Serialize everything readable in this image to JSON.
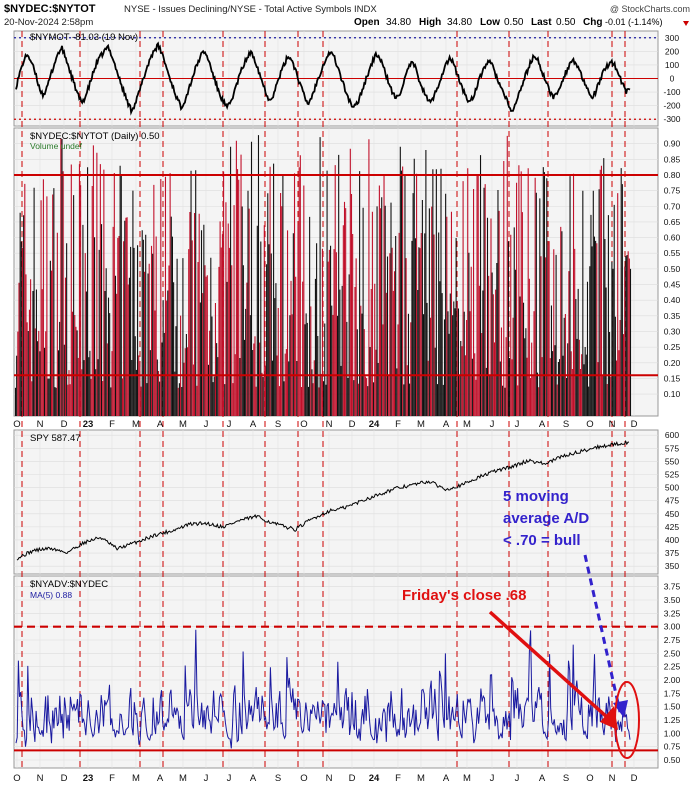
{
  "header": {
    "symbol": "$NYDEC:$NYTOT",
    "description": "NYSE - Issues Declining/NYSE - Total Active Symbols INDX",
    "watermark": "@ StockCharts.com",
    "date": "20-Nov-2024 2:58pm",
    "open_label": "Open",
    "open": "34.80",
    "high_label": "High",
    "high": "34.80",
    "low_label": "Low",
    "low": "0.50",
    "last_label": "Last",
    "last": "0.50",
    "chg_label": "Chg",
    "chg": "-0.01 (-1.14%)"
  },
  "colors": {
    "red": "#cc0000",
    "bar_red": "#c0102a",
    "blue": "#1a1aa0",
    "annotation_blue": "#3322cc",
    "panel_bg": "#f4f4f4"
  },
  "x_labels": [
    "O",
    "N",
    "D",
    "23",
    "F",
    "M",
    "A",
    "M",
    "J",
    "J",
    "A",
    "S",
    "O",
    "N",
    "D",
    "24",
    "F",
    "M",
    "A",
    "M",
    "J",
    "J",
    "A",
    "S",
    "O",
    "N",
    "D"
  ],
  "chart_data": [
    {
      "type": "line",
      "panel": "oscillator",
      "legend": "$NYMOT -81.03 (19 Nov)",
      "ylim": [
        -350,
        350
      ],
      "yticks": [
        -300,
        -200,
        -100,
        0,
        100,
        200,
        300
      ],
      "tick_labels": [
        "-300",
        "-200",
        "-100",
        "0",
        "100",
        "200",
        "300"
      ],
      "reference_lines": {
        "blue_dotted": 300,
        "red_zero": 0,
        "red_dotted": -300
      },
      "values": [
        -60,
        40,
        130,
        180,
        120,
        40,
        -60,
        -120,
        -80,
        20,
        110,
        190,
        220,
        150,
        60,
        -30,
        -110,
        -180,
        -140,
        -60,
        30,
        110,
        160,
        200,
        230,
        170,
        80,
        -10,
        -90,
        -170,
        -230,
        -190,
        -110,
        -20,
        70,
        150,
        210,
        240,
        190,
        100,
        10,
        -70,
        -150,
        -210,
        -160,
        -80,
        10,
        90,
        160,
        200,
        150,
        60,
        -30,
        -110,
        -170,
        -220,
        -170,
        -90,
        0,
        80,
        140,
        190,
        160,
        80,
        -10,
        -90,
        -160,
        -120,
        -40,
        40,
        110,
        170,
        130,
        50,
        -40,
        -120,
        -190,
        -140,
        -60,
        20,
        100,
        160,
        200,
        150,
        70,
        -20,
        -100,
        -170,
        -220,
        -180,
        -100,
        -20,
        60,
        130,
        180,
        140,
        60,
        -20,
        -100,
        -150,
        -110,
        -30,
        50,
        120,
        80,
        0,
        -80,
        -140,
        -180,
        -130,
        -50,
        30,
        100,
        150,
        110,
        30,
        -50,
        -120,
        -170,
        -140,
        -70,
        10,
        80,
        130,
        100,
        30,
        -40,
        -110,
        -170,
        -250,
        -200,
        -120,
        -40,
        40,
        110,
        170,
        130,
        60,
        -20,
        -90,
        -140,
        -110,
        -40,
        30,
        90,
        140,
        110,
        40,
        -30,
        -90,
        -140,
        -100,
        -30,
        40,
        90,
        130,
        100,
        30,
        -40,
        -100,
        -81
      ]
    },
    {
      "type": "bar",
      "panel": "nydec_ratio",
      "legend": "$NYDEC:$NYTOT (Daily) 0.50",
      "legend2": "Volume undef",
      "ylim": [
        0.03,
        0.95
      ],
      "yticks": [
        0.1,
        0.15,
        0.2,
        0.25,
        0.3,
        0.35,
        0.4,
        0.45,
        0.5,
        0.55,
        0.6,
        0.65,
        0.7,
        0.75,
        0.8,
        0.85,
        0.9
      ],
      "tick_labels": [
        "0.10",
        "0.15",
        "0.20",
        "0.25",
        "0.30",
        "0.35",
        "0.40",
        "0.45",
        "0.50",
        "0.55",
        "0.60",
        "0.65",
        "0.70",
        "0.75",
        "0.80",
        "0.85",
        "0.90"
      ],
      "reference_lines": [
        0.8,
        0.16
      ],
      "last": 0.5
    },
    {
      "type": "line",
      "panel": "spy",
      "legend": "SPY 587.47",
      "ylim": [
        335,
        610
      ],
      "yticks": [
        350,
        375,
        400,
        425,
        450,
        475,
        500,
        525,
        550,
        575,
        600
      ],
      "tick_labels": [
        "350",
        "375",
        "400",
        "425",
        "450",
        "475",
        "500",
        "525",
        "550",
        "575",
        "600"
      ],
      "anchors": [
        [
          0,
          365
        ],
        [
          3,
          380
        ],
        [
          6,
          384
        ],
        [
          9,
          376
        ],
        [
          12,
          395
        ],
        [
          15,
          405
        ],
        [
          18,
          383
        ],
        [
          22,
          398
        ],
        [
          25,
          410
        ],
        [
          28,
          418
        ],
        [
          31,
          430
        ],
        [
          34,
          432
        ],
        [
          37,
          425
        ],
        [
          40,
          437
        ],
        [
          43,
          445
        ],
        [
          46,
          432
        ],
        [
          50,
          420
        ],
        [
          53,
          440
        ],
        [
          56,
          455
        ],
        [
          59,
          462
        ],
        [
          62,
          475
        ],
        [
          65,
          487
        ],
        [
          68,
          498
        ],
        [
          71,
          505
        ],
        [
          74,
          512
        ],
        [
          77,
          497
        ],
        [
          80,
          505
        ],
        [
          83,
          520
        ],
        [
          86,
          532
        ],
        [
          89,
          540
        ],
        [
          92,
          552
        ],
        [
          95,
          545
        ],
        [
          98,
          560
        ],
        [
          101,
          568
        ],
        [
          104,
          577
        ],
        [
          107,
          582
        ],
        [
          110,
          587
        ]
      ]
    },
    {
      "type": "line",
      "panel": "nyadv_nydec",
      "legend": "$NYADV:$NYDEC",
      "legend2": "MA(5) 0.88",
      "ylim": [
        0.35,
        3.95
      ],
      "yticks": [
        0.5,
        0.75,
        1.0,
        1.25,
        1.5,
        1.75,
        2.0,
        2.25,
        2.5,
        2.75,
        3.0,
        3.25,
        3.5,
        3.75
      ],
      "tick_labels": [
        "0.50",
        "0.75",
        "1.00",
        "1.25",
        "1.50",
        "1.75",
        "2.00",
        "2.25",
        "2.50",
        "2.75",
        "3.00",
        "3.25",
        "3.50",
        "3.75"
      ],
      "reference_lines": {
        "dashed_upper": 3.0,
        "lower": 0.68
      },
      "last": 0.88
    }
  ],
  "annotations": {
    "blue_text_1": "5 moving",
    "blue_text_2": "average A/D",
    "blue_text_3": "< .70 = bull",
    "red_text": "Friday's close .68"
  }
}
